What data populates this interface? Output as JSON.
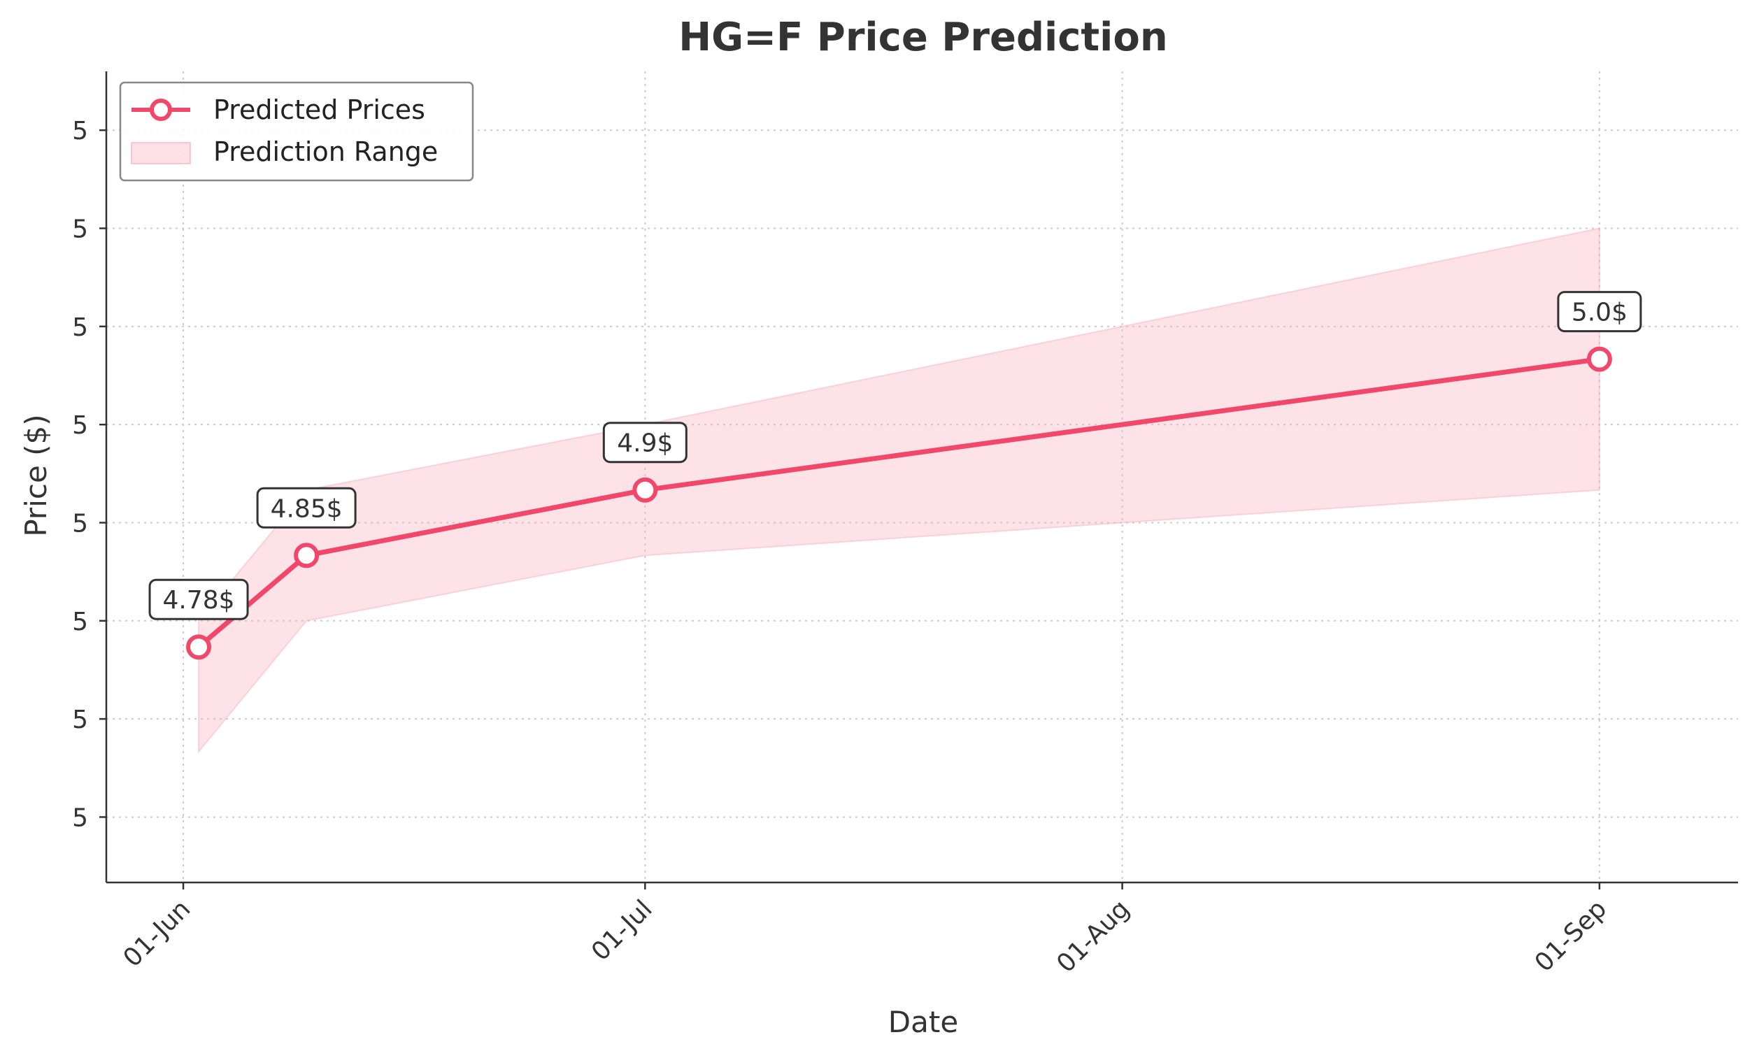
{
  "chart_data": {
    "type": "line",
    "title": "HG=F Price Prediction",
    "xlabel": "Date",
    "ylabel": "Price ($)",
    "x_ticks": [
      "01-Jun",
      "01-Jul",
      "01-Aug",
      "01-Sep"
    ],
    "y_tick_labels": [
      "5",
      "5",
      "5",
      "5",
      "5",
      "5",
      "5",
      "5"
    ],
    "ylim": [
      4.6,
      5.22
    ],
    "grid": true,
    "legend_position": "top-left",
    "series": [
      {
        "name": "Predicted Prices",
        "type": "line",
        "color": "#f0476a",
        "points": [
          {
            "date": "2024-06-02",
            "value": 4.78,
            "label": "4.78$"
          },
          {
            "date": "2024-06-09",
            "value": 4.85,
            "label": "4.85$"
          },
          {
            "date": "2024-07-01",
            "value": 4.9,
            "label": "4.9$"
          },
          {
            "date": "2024-09-01",
            "value": 5.0,
            "label": "5.0$"
          }
        ]
      },
      {
        "name": "Prediction Range",
        "type": "area",
        "color": "#f9aab9",
        "points": [
          {
            "date": "2024-06-02",
            "lower": 4.7,
            "upper": 4.8
          },
          {
            "date": "2024-06-09",
            "lower": 4.8,
            "upper": 4.9
          },
          {
            "date": "2024-07-01",
            "lower": 4.85,
            "upper": 4.95
          },
          {
            "date": "2024-08-01",
            "lower": 4.875,
            "upper": 5.025
          },
          {
            "date": "2024-09-01",
            "lower": 4.9,
            "upper": 5.1
          }
        ]
      }
    ]
  }
}
